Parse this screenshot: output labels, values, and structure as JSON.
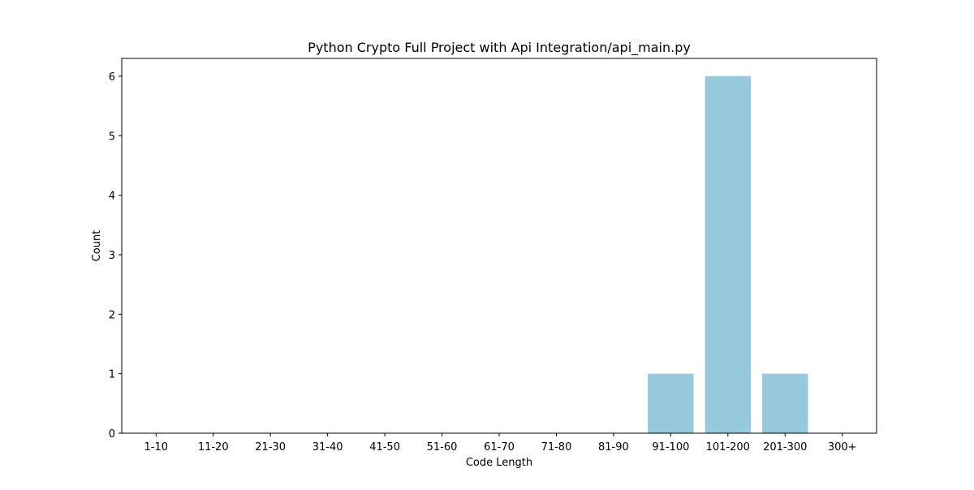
{
  "chart_data": {
    "type": "bar",
    "title": "Python Crypto Full Project with Api Integration/api_main.py",
    "xlabel": "Code Length",
    "ylabel": "Count",
    "categories": [
      "1-10",
      "11-20",
      "21-30",
      "31-40",
      "41-50",
      "51-60",
      "61-70",
      "71-80",
      "81-90",
      "91-100",
      "101-200",
      "201-300",
      "300+"
    ],
    "values": [
      0,
      0,
      0,
      0,
      0,
      0,
      0,
      0,
      0,
      1,
      6,
      1,
      0
    ],
    "ylim": [
      0,
      6.3
    ],
    "yticks": [
      0,
      1,
      2,
      3,
      4,
      5,
      6
    ],
    "bar_color": "#96c9dc",
    "grid": false
  }
}
